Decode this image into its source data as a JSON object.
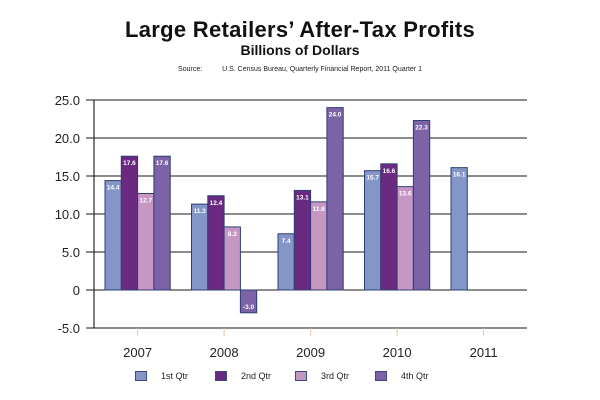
{
  "chart_data": {
    "type": "bar",
    "title": "Large Retailers’ After-Tax Profits",
    "subtitle": "Billions of Dollars",
    "source_label": "Source:",
    "source_text": "U.S. Census Bureau, Quarterly Financial Report, 2011 Quarter 1",
    "xlabel": "",
    "ylabel": "",
    "ylim": [
      -5.0,
      25.0
    ],
    "yticks": [
      "25.0",
      "20.0",
      "15.0",
      "10.0",
      "5.0",
      "0",
      "-5.0"
    ],
    "ytick_values": [
      25,
      20,
      15,
      10,
      5,
      0,
      -5
    ],
    "grid": true,
    "legend_position": "bottom",
    "categories": [
      "2007",
      "2008",
      "2009",
      "2010",
      "2011"
    ],
    "series": [
      {
        "name": "1st Qtr",
        "color": "#8496c8",
        "values": [
          14.4,
          11.3,
          7.4,
          15.7,
          16.1
        ],
        "labels": [
          "14.4",
          "11.3",
          "7.4",
          "15.7",
          "16.1"
        ]
      },
      {
        "name": "2nd Qtr",
        "color": "#6a2a82",
        "values": [
          17.6,
          12.4,
          13.1,
          16.6,
          null
        ],
        "labels": [
          "17.6",
          "12.4",
          "13.1",
          "16.6",
          ""
        ]
      },
      {
        "name": "3rd Qtr",
        "color": "#c797c4",
        "values": [
          12.7,
          8.3,
          11.6,
          13.6,
          null
        ],
        "labels": [
          "12.7",
          "8.3",
          "11.6",
          "13.6",
          ""
        ]
      },
      {
        "name": "4th Qtr",
        "color": "#7c63a8",
        "values": [
          17.6,
          -3.0,
          24.0,
          22.3,
          null
        ],
        "labels": [
          "17.6",
          "-3.0",
          "24.0",
          "22.3",
          ""
        ]
      }
    ]
  }
}
